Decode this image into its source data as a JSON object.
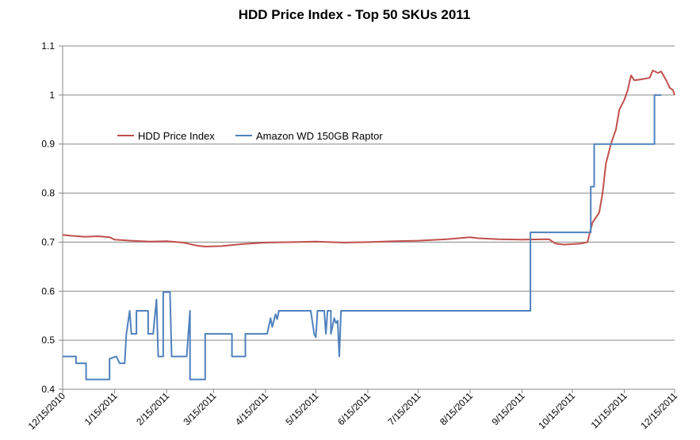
{
  "chart_data": {
    "type": "line",
    "title": "HDD Price Index - Top 50 SKUs 2011",
    "xlabel": "",
    "ylabel": "",
    "ylim": [
      0.4,
      1.1
    ],
    "yticks": [
      "0.4",
      "0.5",
      "0.6",
      "0.7",
      "0.8",
      "0.9",
      "1",
      "1.1"
    ],
    "xlim": [
      "2010-12-15",
      "2011-12-15"
    ],
    "xticks": [
      "12/15/2010",
      "1/15/2011",
      "2/15/2011",
      "3/15/2011",
      "4/15/2011",
      "5/15/2011",
      "6/15/2011",
      "7/15/2011",
      "8/15/2011",
      "9/15/2011",
      "10/15/2011",
      "11/15/2011",
      "12/15/2011"
    ],
    "grid": "horizontal",
    "legend_position": "left-upper",
    "series": [
      {
        "name": "HDD Price Index",
        "color": "#c0504d",
        "points": [
          [
            "2010-12-15",
            0.715
          ],
          [
            "2010-12-20",
            0.713
          ],
          [
            "2010-12-28",
            0.711
          ],
          [
            "2011-01-05",
            0.712
          ],
          [
            "2011-01-12",
            0.71
          ],
          [
            "2011-01-15",
            0.705
          ],
          [
            "2011-01-25",
            0.703
          ],
          [
            "2011-02-05",
            0.701
          ],
          [
            "2011-02-15",
            0.702
          ],
          [
            "2011-02-25",
            0.699
          ],
          [
            "2011-03-05",
            0.693
          ],
          [
            "2011-03-10",
            0.691
          ],
          [
            "2011-03-20",
            0.692
          ],
          [
            "2011-04-01",
            0.696
          ],
          [
            "2011-04-15",
            0.699
          ],
          [
            "2011-05-01",
            0.7
          ],
          [
            "2011-05-15",
            0.701
          ],
          [
            "2011-06-01",
            0.699
          ],
          [
            "2011-06-15",
            0.7
          ],
          [
            "2011-07-01",
            0.702
          ],
          [
            "2011-07-15",
            0.703
          ],
          [
            "2011-08-01",
            0.706
          ],
          [
            "2011-08-15",
            0.71
          ],
          [
            "2011-08-20",
            0.708
          ],
          [
            "2011-09-01",
            0.706
          ],
          [
            "2011-09-15",
            0.705
          ],
          [
            "2011-10-01",
            0.706
          ],
          [
            "2011-10-05",
            0.697
          ],
          [
            "2011-10-10",
            0.695
          ],
          [
            "2011-10-20",
            0.697
          ],
          [
            "2011-10-24",
            0.7
          ],
          [
            "2011-10-27",
            0.74
          ],
          [
            "2011-10-31",
            0.76
          ],
          [
            "2011-11-02",
            0.8
          ],
          [
            "2011-11-04",
            0.86
          ],
          [
            "2011-11-07",
            0.9
          ],
          [
            "2011-11-10",
            0.93
          ],
          [
            "2011-11-12",
            0.97
          ],
          [
            "2011-11-15",
            0.99
          ],
          [
            "2011-11-17",
            1.01
          ],
          [
            "2011-11-19",
            1.04
          ],
          [
            "2011-11-21",
            1.03
          ],
          [
            "2011-11-25",
            1.032
          ],
          [
            "2011-11-30",
            1.035
          ],
          [
            "2011-12-02",
            1.05
          ],
          [
            "2011-12-05",
            1.045
          ],
          [
            "2011-12-07",
            1.048
          ],
          [
            "2011-12-10",
            1.03
          ],
          [
            "2011-12-12",
            1.015
          ],
          [
            "2011-12-14",
            1.01
          ],
          [
            "2011-12-15",
            1.0
          ]
        ]
      },
      {
        "name": "Amazon WD 150GB Raptor",
        "color": "#4f81bd",
        "points": [
          [
            "2010-12-15",
            0.467
          ],
          [
            "2010-12-23",
            0.467
          ],
          [
            "2010-12-23",
            0.453
          ],
          [
            "2010-12-29",
            0.453
          ],
          [
            "2010-12-29",
            0.42
          ],
          [
            "2011-01-12",
            0.42
          ],
          [
            "2011-01-12",
            0.462
          ],
          [
            "2011-01-16",
            0.467
          ],
          [
            "2011-01-18",
            0.453
          ],
          [
            "2011-01-21",
            0.453
          ],
          [
            "2011-01-22",
            0.513
          ],
          [
            "2011-01-24",
            0.56
          ],
          [
            "2011-01-25",
            0.513
          ],
          [
            "2011-01-28",
            0.513
          ],
          [
            "2011-01-28",
            0.56
          ],
          [
            "2011-02-04",
            0.56
          ],
          [
            "2011-02-04",
            0.513
          ],
          [
            "2011-02-07",
            0.513
          ],
          [
            "2011-02-09",
            0.583
          ],
          [
            "2011-02-10",
            0.467
          ],
          [
            "2011-02-13",
            0.467
          ],
          [
            "2011-02-13",
            0.598
          ],
          [
            "2011-02-17",
            0.598
          ],
          [
            "2011-02-18",
            0.467
          ],
          [
            "2011-02-27",
            0.467
          ],
          [
            "2011-02-29",
            0.56
          ],
          [
            "2011-03-01",
            0.56
          ],
          [
            "2011-03-01",
            0.42
          ],
          [
            "2011-03-10",
            0.42
          ],
          [
            "2011-03-10",
            0.513
          ],
          [
            "2011-03-26",
            0.513
          ],
          [
            "2011-03-26",
            0.467
          ],
          [
            "2011-04-03",
            0.467
          ],
          [
            "2011-04-03",
            0.513
          ],
          [
            "2011-04-16",
            0.513
          ],
          [
            "2011-04-18",
            0.545
          ],
          [
            "2011-04-19",
            0.527
          ],
          [
            "2011-04-21",
            0.553
          ],
          [
            "2011-04-22",
            0.543
          ],
          [
            "2011-04-23",
            0.56
          ],
          [
            "2011-05-12",
            0.56
          ],
          [
            "2011-05-14",
            0.513
          ],
          [
            "2011-05-15",
            0.506
          ],
          [
            "2011-05-16",
            0.56
          ],
          [
            "2011-05-20",
            0.56
          ],
          [
            "2011-05-21",
            0.513
          ],
          [
            "2011-05-22",
            0.56
          ],
          [
            "2011-05-24",
            0.56
          ],
          [
            "2011-05-24",
            0.513
          ],
          [
            "2011-05-26",
            0.545
          ],
          [
            "2011-05-27",
            0.535
          ],
          [
            "2011-05-28",
            0.54
          ],
          [
            "2011-05-29",
            0.467
          ],
          [
            "2011-05-30",
            0.56
          ],
          [
            "2011-09-20",
            0.56
          ],
          [
            "2011-09-20",
            0.72
          ],
          [
            "2011-10-26",
            0.72
          ],
          [
            "2011-10-26",
            0.813
          ],
          [
            "2011-10-28",
            0.813
          ],
          [
            "2011-10-28",
            0.9
          ],
          [
            "2011-12-03",
            0.9
          ],
          [
            "2011-12-03",
            1.0
          ],
          [
            "2011-12-07",
            1.0
          ]
        ]
      }
    ]
  }
}
